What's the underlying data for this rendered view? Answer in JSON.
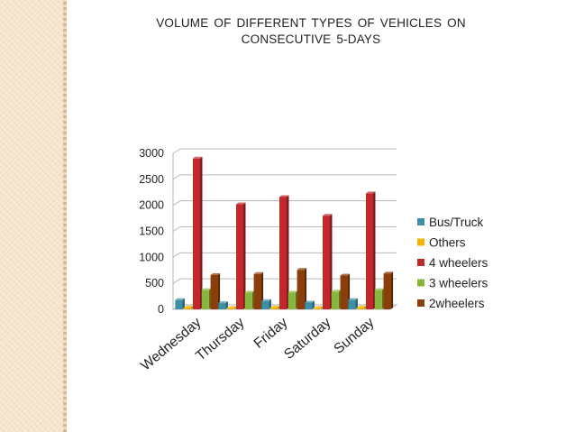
{
  "chart_data": {
    "type": "bar",
    "title_lines": [
      "VOLUME  OF  DIFFERENT  TYPES OF  VEHICLES ON",
      "CONSECUTIVE 5-DAYS"
    ],
    "categories": [
      "Wednesday",
      "Thursday",
      "Friday",
      "Saturday",
      "Sunday"
    ],
    "series": [
      {
        "name": "Bus/Truck",
        "color": "#3b8fa6",
        "values": [
          180,
          120,
          160,
          130,
          180
        ]
      },
      {
        "name": "Others",
        "color": "#f2b600",
        "values": [
          40,
          30,
          40,
          30,
          40
        ]
      },
      {
        "name": "4 wheelers",
        "color": "#c0292b",
        "values": [
          2900,
          2020,
          2160,
          1800,
          2230
        ]
      },
      {
        "name": "3 wheelers",
        "color": "#89b53a",
        "values": [
          370,
          320,
          320,
          340,
          370
        ]
      },
      {
        "name": "2wheelers",
        "color": "#8b3d0a",
        "values": [
          660,
          680,
          760,
          650,
          690
        ]
      }
    ],
    "yticks": [
      0,
      500,
      1000,
      1500,
      2000,
      2500,
      3000
    ],
    "ylim": [
      0,
      3000
    ],
    "legend_position": "right",
    "grid": true
  }
}
